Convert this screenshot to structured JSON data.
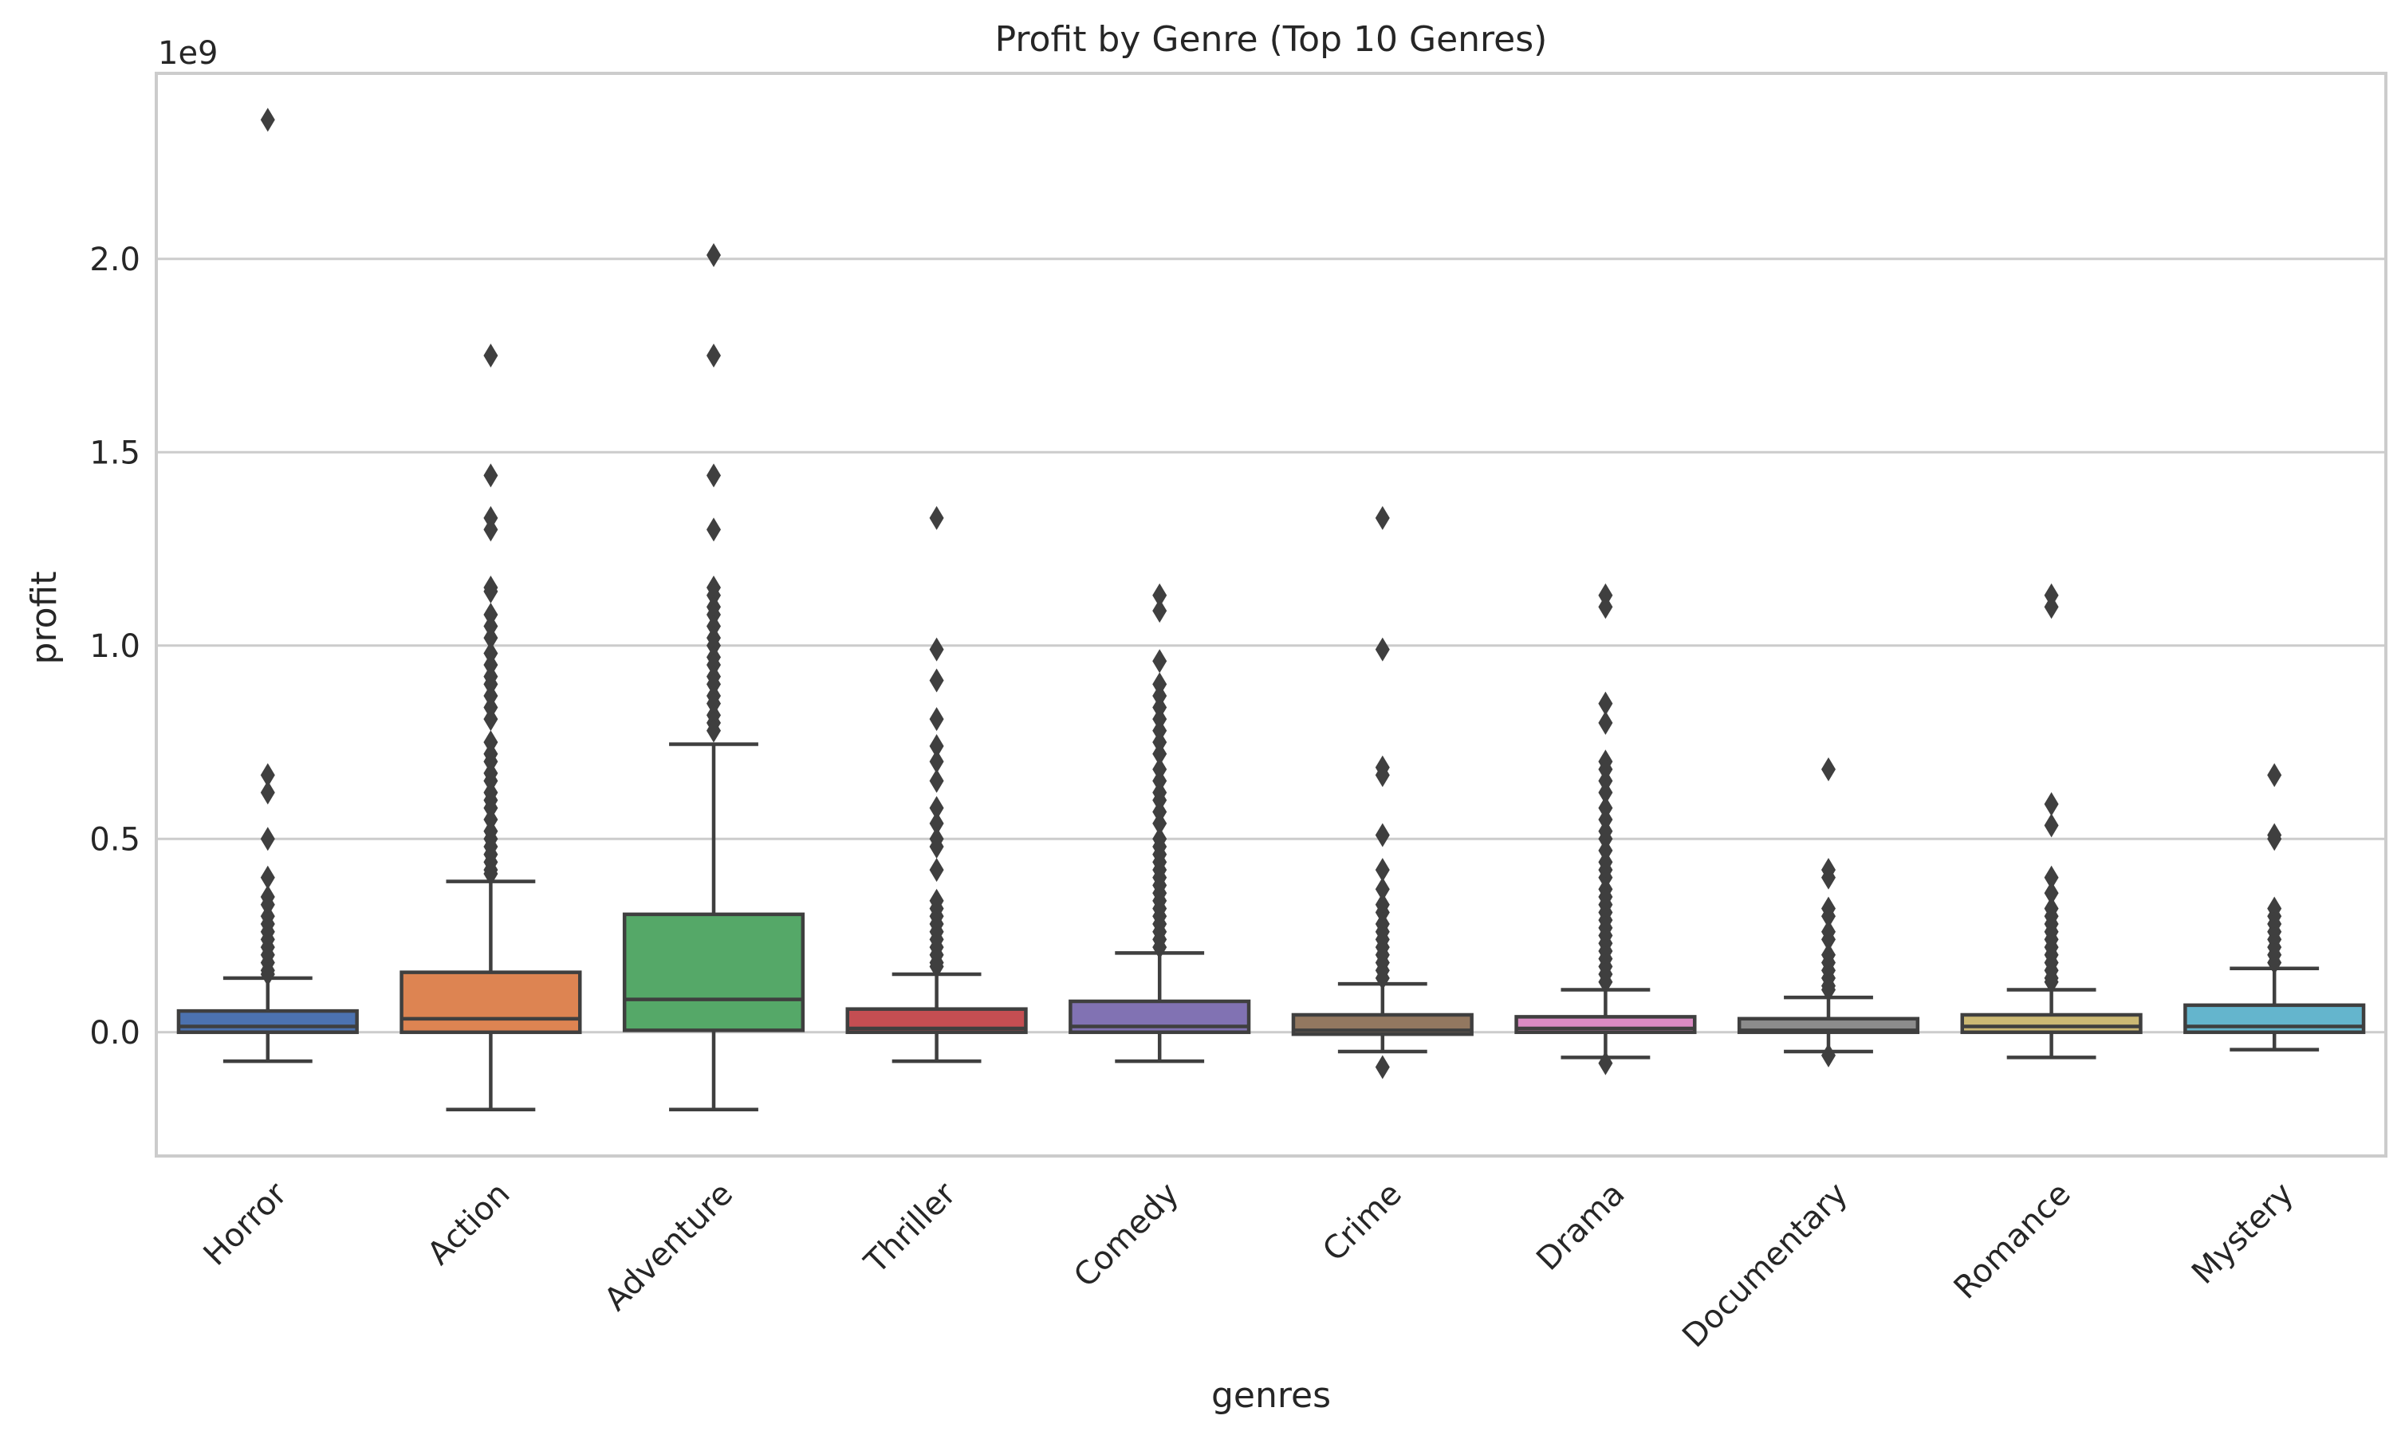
{
  "chart_data": {
    "type": "box",
    "title": "Profit by Genre (Top 10 Genres)",
    "xlabel": "genres",
    "ylabel": "profit",
    "y_offset_label": "1e9",
    "y_scale_factor": 1000000000,
    "ylim": [
      -0.32,
      2.48
    ],
    "yticks": [
      0.0,
      0.5,
      1.0,
      1.5,
      2.0
    ],
    "ytick_labels": [
      "0.0",
      "0.5",
      "1.0",
      "1.5",
      "2.0"
    ],
    "grid": true,
    "categories": [
      "Horror",
      "Action",
      "Adventure",
      "Thriller",
      "Comedy",
      "Crime",
      "Drama",
      "Documentary",
      "Romance",
      "Mystery"
    ],
    "boxes": [
      {
        "name": "Horror",
        "color": "#4c72b0",
        "whisker_low": -0.075,
        "q1": 0.0,
        "median": 0.015,
        "q3": 0.055,
        "whisker_high": 0.14,
        "outliers": [
          2.36,
          0.665,
          0.62,
          0.5,
          0.4,
          0.35,
          0.33,
          0.3,
          0.28,
          0.26,
          0.24,
          0.22,
          0.2,
          0.18,
          0.16,
          0.15
        ]
      },
      {
        "name": "Action",
        "color": "#dd8452",
        "whisker_low": -0.2,
        "q1": 0.0,
        "median": 0.035,
        "q3": 0.155,
        "whisker_high": 0.39,
        "outliers": [
          1.75,
          1.44,
          1.33,
          1.3,
          1.15,
          1.14,
          1.08,
          1.05,
          1.02,
          0.98,
          0.95,
          0.92,
          0.9,
          0.87,
          0.84,
          0.81,
          0.75,
          0.72,
          0.7,
          0.67,
          0.65,
          0.62,
          0.6,
          0.58,
          0.55,
          0.52,
          0.5,
          0.48,
          0.46,
          0.44,
          0.42,
          0.41
        ]
      },
      {
        "name": "Adventure",
        "color": "#55a868",
        "whisker_low": -0.2,
        "q1": 0.005,
        "median": 0.085,
        "q3": 0.305,
        "whisker_high": 0.745,
        "outliers": [
          2.01,
          1.75,
          1.44,
          1.3,
          1.15,
          1.13,
          1.1,
          1.08,
          1.05,
          1.02,
          1.0,
          0.97,
          0.95,
          0.92,
          0.9,
          0.87,
          0.85,
          0.82,
          0.8,
          0.78
        ]
      },
      {
        "name": "Thriller",
        "color": "#c44e52",
        "whisker_low": -0.075,
        "q1": 0.0,
        "median": 0.01,
        "q3": 0.06,
        "whisker_high": 0.15,
        "outliers": [
          1.33,
          0.99,
          0.91,
          0.81,
          0.74,
          0.7,
          0.65,
          0.58,
          0.54,
          0.5,
          0.48,
          0.42,
          0.34,
          0.32,
          0.3,
          0.28,
          0.26,
          0.24,
          0.22,
          0.2,
          0.18,
          0.17
        ]
      },
      {
        "name": "Comedy",
        "color": "#8172b3",
        "whisker_low": -0.075,
        "q1": 0.0,
        "median": 0.015,
        "q3": 0.08,
        "whisker_high": 0.205,
        "outliers": [
          1.13,
          1.09,
          0.96,
          0.9,
          0.87,
          0.84,
          0.81,
          0.78,
          0.75,
          0.72,
          0.68,
          0.65,
          0.62,
          0.6,
          0.57,
          0.54,
          0.5,
          0.48,
          0.46,
          0.44,
          0.42,
          0.4,
          0.38,
          0.36,
          0.34,
          0.32,
          0.3,
          0.28,
          0.26,
          0.24,
          0.22
        ]
      },
      {
        "name": "Crime",
        "color": "#937860",
        "whisker_low": -0.05,
        "q1": -0.005,
        "median": 0.005,
        "q3": 0.045,
        "whisker_high": 0.125,
        "outliers": [
          1.33,
          0.99,
          0.685,
          0.665,
          0.51,
          0.42,
          0.37,
          0.33,
          0.31,
          0.28,
          0.26,
          0.24,
          0.22,
          0.2,
          0.18,
          0.16,
          0.14,
          -0.09
        ]
      },
      {
        "name": "Drama",
        "color": "#da8bc3",
        "whisker_low": -0.065,
        "q1": 0.0,
        "median": 0.01,
        "q3": 0.04,
        "whisker_high": 0.11,
        "outliers": [
          1.13,
          1.1,
          0.85,
          0.8,
          0.7,
          0.68,
          0.65,
          0.62,
          0.58,
          0.55,
          0.52,
          0.5,
          0.47,
          0.44,
          0.42,
          0.4,
          0.37,
          0.35,
          0.33,
          0.31,
          0.29,
          0.27,
          0.25,
          0.23,
          0.21,
          0.19,
          0.17,
          0.15,
          0.13,
          -0.08
        ]
      },
      {
        "name": "Documentary",
        "color": "#8c8c8c",
        "whisker_low": -0.05,
        "q1": 0.0,
        "median": 0.005,
        "q3": 0.035,
        "whisker_high": 0.09,
        "outliers": [
          0.68,
          0.42,
          0.4,
          0.32,
          0.3,
          0.26,
          0.24,
          0.2,
          0.18,
          0.16,
          0.14,
          0.12,
          0.11,
          -0.06
        ]
      },
      {
        "name": "Romance",
        "color": "#ccb974",
        "whisker_low": -0.065,
        "q1": 0.0,
        "median": 0.015,
        "q3": 0.045,
        "whisker_high": 0.11,
        "outliers": [
          1.13,
          1.1,
          0.59,
          0.535,
          0.4,
          0.36,
          0.32,
          0.3,
          0.28,
          0.26,
          0.24,
          0.22,
          0.2,
          0.18,
          0.16,
          0.14,
          0.13
        ]
      },
      {
        "name": "Mystery",
        "color": "#64b5cd",
        "whisker_low": -0.045,
        "q1": 0.0,
        "median": 0.015,
        "q3": 0.07,
        "whisker_high": 0.165,
        "outliers": [
          0.665,
          0.51,
          0.5,
          0.32,
          0.3,
          0.28,
          0.26,
          0.24,
          0.22,
          0.2,
          0.18
        ]
      }
    ]
  }
}
